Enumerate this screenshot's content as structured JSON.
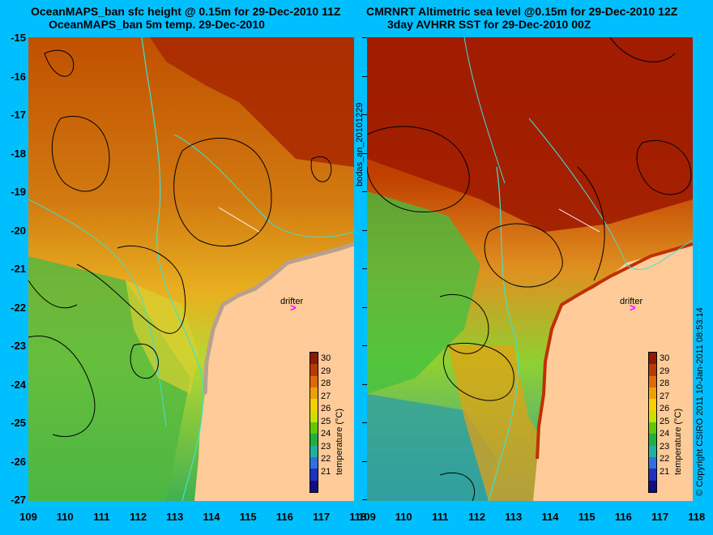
{
  "left_panel": {
    "title_line1": "OceanMAPS_ban sfc height @ 0.15m for 29-Dec-2010 11Z",
    "title_line2": "OceanMAPS_ban 5m temp. 29-Dec-2010",
    "drifter_label": "drifter"
  },
  "right_panel": {
    "title_line1": "CMRNRT Altimetric sea level  @0.15m  for 29-Dec-2010 12Z",
    "title_line2": "3day AVHRR SST for 29-Dec-2010 00Z",
    "drifter_label": "drifter"
  },
  "y_ticks": [
    "-15",
    "-16",
    "-17",
    "-18",
    "-19",
    "-20",
    "-21",
    "-22",
    "-23",
    "-24",
    "-25",
    "-26",
    "-27"
  ],
  "x_ticks": [
    "109",
    "110",
    "111",
    "112",
    "113",
    "114",
    "115",
    "116",
    "117",
    "118"
  ],
  "side_label": "bodas_an_20101229",
  "copyright": "© Copyright CSIRO 2011  10-Jan-2011 08:53:14",
  "colorbar": {
    "label": "temperature (°C)",
    "ticks": [
      "30",
      "29",
      "28",
      "27",
      "26",
      "25",
      "24",
      "23",
      "22",
      "21"
    ],
    "colors": [
      "#8b1a00",
      "#b83a00",
      "#e06a00",
      "#f0a000",
      "#f8d000",
      "#c8e000",
      "#60c800",
      "#20b040",
      "#20b0a0",
      "#3070e0",
      "#2030c0",
      "#101080"
    ]
  },
  "colors": {
    "background": "#00bfff",
    "land": "#ffcc99",
    "coastline": "#40e0d0",
    "contour": "#000000",
    "drifter": "#ff00ff"
  }
}
